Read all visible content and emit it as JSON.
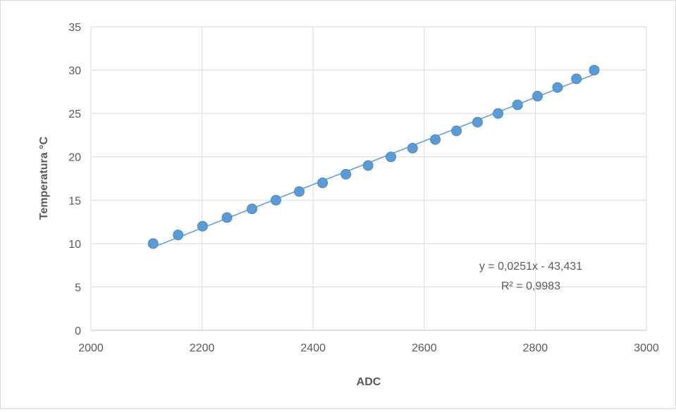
{
  "chart_data": {
    "type": "scatter",
    "title": "",
    "xlabel": "ADC",
    "ylabel": "Temperatura °C",
    "xlim": [
      2000,
      3000
    ],
    "ylim": [
      0,
      35
    ],
    "xticks": [
      2000,
      2200,
      2400,
      2600,
      2800,
      3000
    ],
    "yticks": [
      0,
      5,
      10,
      15,
      20,
      25,
      30,
      35
    ],
    "grid": true,
    "legend": "none",
    "series": [
      {
        "marker_color": "#5b9bd5",
        "points": [
          {
            "x": 2112,
            "y": 10
          },
          {
            "x": 2157,
            "y": 11
          },
          {
            "x": 2201,
            "y": 12
          },
          {
            "x": 2245,
            "y": 13
          },
          {
            "x": 2290,
            "y": 14
          },
          {
            "x": 2333,
            "y": 15
          },
          {
            "x": 2375,
            "y": 16
          },
          {
            "x": 2417,
            "y": 17
          },
          {
            "x": 2459,
            "y": 18
          },
          {
            "x": 2499,
            "y": 19
          },
          {
            "x": 2540,
            "y": 20
          },
          {
            "x": 2579,
            "y": 21
          },
          {
            "x": 2620,
            "y": 22
          },
          {
            "x": 2658,
            "y": 23
          },
          {
            "x": 2696,
            "y": 24
          },
          {
            "x": 2733,
            "y": 25
          },
          {
            "x": 2768,
            "y": 26
          },
          {
            "x": 2804,
            "y": 27
          },
          {
            "x": 2840,
            "y": 28
          },
          {
            "x": 2874,
            "y": 29
          },
          {
            "x": 2906,
            "y": 30
          }
        ]
      }
    ],
    "trendline": {
      "type": "linear",
      "color": "#5b9bd5",
      "slope": 0.0251,
      "intercept": -43.431,
      "x_start": 2112,
      "x_end": 2906,
      "equation_label": "y = 0,0251x - 43,431",
      "r2_label": "R² = 0,9983"
    }
  }
}
